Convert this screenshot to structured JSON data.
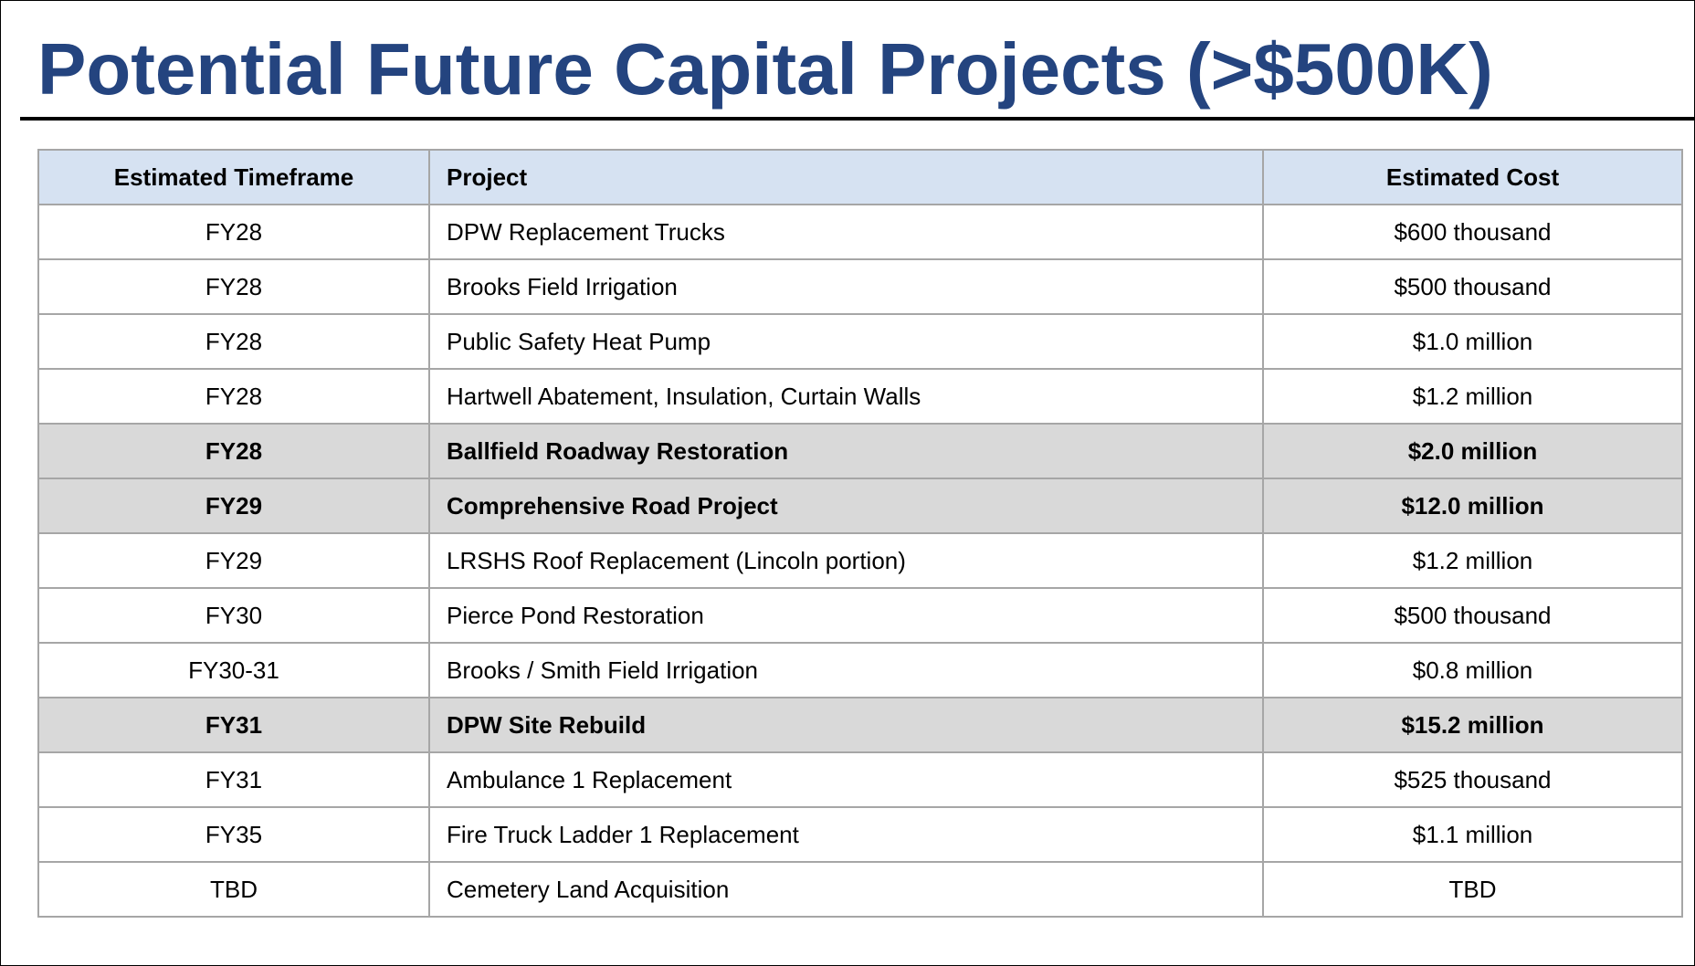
{
  "title": "Potential Future Capital Projects (>$500K)",
  "table": {
    "header": [
      "Estimated Timeframe",
      "Project",
      "Estimated Cost"
    ],
    "rows": [
      {
        "cells": [
          "FY28",
          "DPW Replacement Trucks",
          "$600 thousand"
        ],
        "highlight": false
      },
      {
        "cells": [
          "FY28",
          "Brooks Field Irrigation",
          "$500 thousand"
        ],
        "highlight": false
      },
      {
        "cells": [
          "FY28",
          "Public Safety Heat Pump",
          "$1.0 million"
        ],
        "highlight": false
      },
      {
        "cells": [
          "FY28",
          "Hartwell Abatement, Insulation, Curtain Walls",
          "$1.2 million"
        ],
        "highlight": false
      },
      {
        "cells": [
          "FY28",
          "Ballfield Roadway Restoration",
          "$2.0 million"
        ],
        "highlight": true
      },
      {
        "cells": [
          "FY29",
          "Comprehensive Road Project",
          "$12.0 million"
        ],
        "highlight": true
      },
      {
        "cells": [
          "FY29",
          "LRSHS Roof Replacement (Lincoln portion)",
          "$1.2 million"
        ],
        "highlight": false
      },
      {
        "cells": [
          "FY30",
          "Pierce Pond Restoration",
          "$500 thousand"
        ],
        "highlight": false
      },
      {
        "cells": [
          "FY30-31",
          "Brooks / Smith Field Irrigation",
          "$0.8 million"
        ],
        "highlight": false
      },
      {
        "cells": [
          "FY31",
          "DPW Site Rebuild",
          "$15.2 million"
        ],
        "highlight": true
      },
      {
        "cells": [
          "FY31",
          "Ambulance 1 Replacement",
          "$525 thousand"
        ],
        "highlight": false
      },
      {
        "cells": [
          "FY35",
          "Fire Truck Ladder 1 Replacement",
          "$1.1 million"
        ],
        "highlight": false
      },
      {
        "cells": [
          "TBD",
          "Cemetery Land Acquisition",
          "TBD"
        ],
        "highlight": false
      }
    ]
  }
}
